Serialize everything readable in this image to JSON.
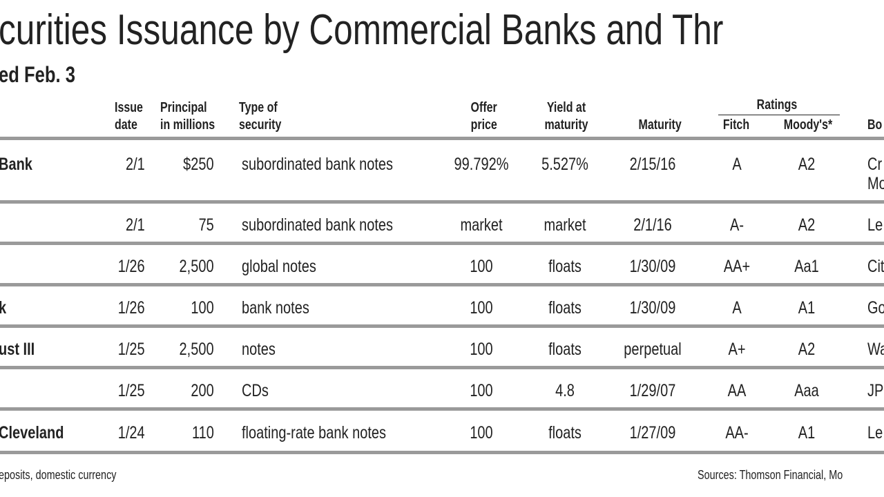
{
  "header": {
    "title": "curities Issuance by Commercial Banks and Thr",
    "subtitle": "ed Feb. 3"
  },
  "table": {
    "ratings_label": "Ratings",
    "columns": [
      [
        "Issue",
        "date"
      ],
      [
        "Principal",
        "in millions"
      ],
      [
        "Type of",
        "security"
      ],
      [
        "Offer",
        "price"
      ],
      [
        "Yield at",
        "maturity"
      ],
      [
        "Maturity"
      ],
      [
        "Fitch"
      ],
      [
        "Moody's*"
      ],
      [
        "Bo"
      ]
    ],
    "rows": [
      {
        "issuer": "Bank",
        "cells": [
          "2/1",
          "$250",
          "subordinated bank notes",
          "99.792%",
          "5.527%",
          "2/15/16",
          "A",
          "A2",
          [
            "Cr",
            "Mo"
          ]
        ]
      },
      {
        "cells": [
          "2/1",
          "75",
          "subordinated bank notes",
          "market",
          "market",
          "2/1/16",
          "A-",
          "A2",
          [
            "Le"
          ]
        ]
      },
      {
        "cells": [
          "1/26",
          "2,500",
          "global notes",
          "100",
          "floats",
          "1/30/09",
          "AA+",
          "Aa1",
          [
            "Cit"
          ]
        ]
      },
      {
        "issuer": "k",
        "cells": [
          "1/26",
          "100",
          "bank notes",
          "100",
          "floats",
          "1/30/09",
          "A",
          "A1",
          [
            "Go"
          ]
        ]
      },
      {
        "issuer": "ust III",
        "cells": [
          "1/25",
          "2,500",
          "notes",
          "100",
          "floats",
          "perpetual",
          "A+",
          "A2",
          [
            "Wa"
          ]
        ]
      },
      {
        "cells": [
          "1/25",
          "200",
          "CDs",
          "100",
          "4.8",
          "1/29/07",
          "AA",
          "Aaa",
          [
            "JP"
          ]
        ]
      },
      {
        "issuer": "Cleveland",
        "cells": [
          "1/24",
          "110",
          "floating-rate bank notes",
          "100",
          "floats",
          "1/27/09",
          "AA-",
          "A1",
          [
            "Le"
          ]
        ]
      }
    ]
  },
  "footer": {
    "note": "eposits, domestic currency",
    "sources": "Sources: Thomson Financial, Mo"
  }
}
